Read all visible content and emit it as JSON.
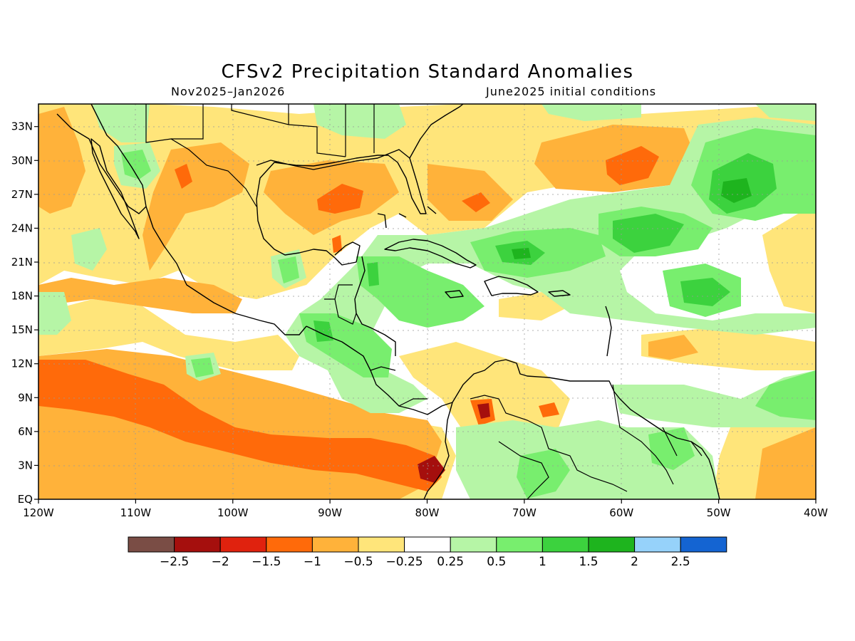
{
  "title": "CFSv2 Precipitation Standard Anomalies",
  "period": "Nov2025–Jan2026",
  "init": "June2025 initial conditions",
  "map": {
    "lon_range": [
      -120,
      -40
    ],
    "lat_range": [
      0,
      35
    ],
    "lon_labels": [
      "120W",
      "110W",
      "100W",
      "90W",
      "80W",
      "70W",
      "60W",
      "50W",
      "40W"
    ],
    "lat_labels": [
      "EQ",
      "3N",
      "6N",
      "9N",
      "12N",
      "15N",
      "18N",
      "21N",
      "24N",
      "27N",
      "30N",
      "33N"
    ],
    "grid": "dotted"
  },
  "legend": {
    "colors": [
      "#7a4d45",
      "#a50f0d",
      "#e0220e",
      "#ff6a0a",
      "#ffb23a",
      "#ffe57a",
      "#ffffff",
      "#b6f5a6",
      "#78ee6e",
      "#3cd23e",
      "#1eb41e",
      "#96d2fa",
      "#1464d2"
    ],
    "labels": [
      "−2.5",
      "−2",
      "−1.5",
      "−1",
      "−0.5",
      "−0.25",
      "0.25",
      "0.5",
      "1",
      "1.5",
      "2",
      "2.5"
    ]
  },
  "colors": {
    "dry_light": "#ffe57a",
    "dry": "#ffb23a",
    "dry_strong": "#ff6a0a",
    "dry_very": "#e0220e",
    "dry_extreme": "#a50f0d",
    "wet_light": "#b6f5a6",
    "wet": "#78ee6e",
    "wet_strong": "#3cd23e",
    "wet_very": "#1eb41e"
  }
}
